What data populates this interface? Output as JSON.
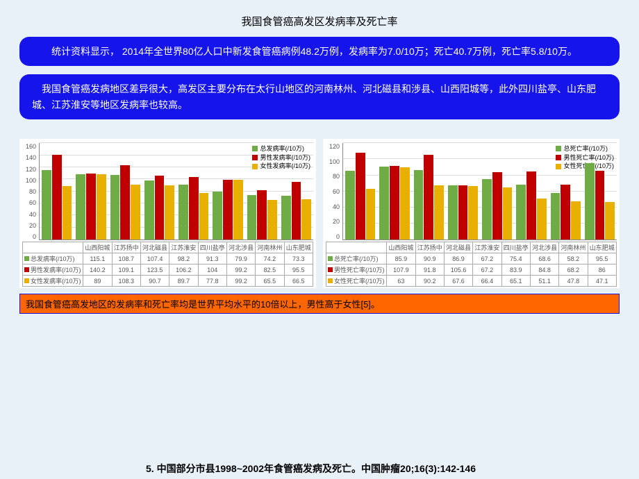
{
  "title": "我国食管癌高发区发病率及死亡率",
  "box1": "　　统计资料显示， 2014年全世界80亿人口中新发食管癌病例48.2万例，发病率为7.0/10万；死亡40.7万例，死亡率5.8/10万。",
  "box2": "　我国食管癌发病地区差异很大，高发区主要分布在太行山地区的河南林州、河北磁县和涉县、山西阳城等，此外四川盐亭、山东肥城、江苏淮安等地区发病率也较高。",
  "box3": "我国食管癌高发地区的发病率和死亡率均是世界平均水平的10倍以上，男性高于女性[5]。",
  "citation": "5. 中国部分市县1998~2002年食管癌发病及死亡。中国肿瘤20;16(3):142-146",
  "colors": {
    "total": "#6fac46",
    "male": "#c00000",
    "female": "#e8b000"
  },
  "chart1": {
    "ymax": 160,
    "ystep": 20,
    "legend": [
      "总发病率(/10万)",
      "男性发病率(/10万)",
      "女性发病率(/10万)"
    ],
    "categories": [
      "山西阳城",
      "江苏扬中",
      "河北磁县",
      "江苏淮安",
      "四川盐亭",
      "河北涉县",
      "河南林州",
      "山东肥城"
    ],
    "rows": [
      {
        "label": "总发病率(/10万)",
        "vals": [
          115.1,
          108.7,
          107.4,
          98.2,
          91.3,
          79.9,
          74.2,
          73.3
        ]
      },
      {
        "label": "男性发病率(/10万)",
        "vals": [
          140.2,
          109.1,
          123.5,
          106.2,
          104,
          99.2,
          82.5,
          95.5
        ]
      },
      {
        "label": "女性发病率(/10万)",
        "vals": [
          89,
          108.3,
          90.7,
          89.7,
          77.8,
          99.2,
          65.5,
          66.5
        ]
      }
    ]
  },
  "chart2": {
    "ymax": 120,
    "ystep": 20,
    "legend": [
      "总死亡率(/10万)",
      "男性死亡率(/10万)",
      "女性死亡率(/10万)"
    ],
    "categories": [
      "山西阳城",
      "江苏扬中",
      "河北磁县",
      "江苏淮安",
      "四川盐亭",
      "河北涉县",
      "河南林州",
      "山东肥城"
    ],
    "rows": [
      {
        "label": "总死亡率(/10万)",
        "vals": [
          85.9,
          90.9,
          86.9,
          67.2,
          75.4,
          68.6,
          58.2,
          95.5
        ]
      },
      {
        "label": "男性死亡率(/10万)",
        "vals": [
          107.9,
          91.8,
          105.6,
          67.2,
          83.9,
          84.8,
          68.2,
          86
        ]
      },
      {
        "label": "女性死亡率(/10万)",
        "vals": [
          63,
          90.2,
          67.6,
          66.4,
          65.1,
          51.1,
          47.8,
          47.1
        ]
      }
    ]
  }
}
